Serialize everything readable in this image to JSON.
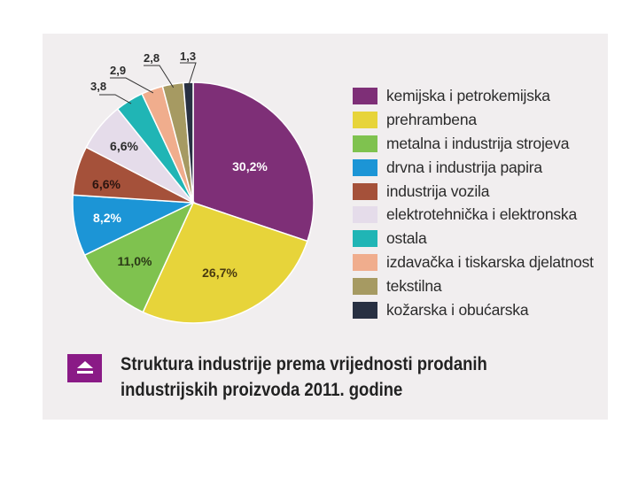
{
  "chart_data": {
    "type": "pie",
    "title": "Struktura industrije prema vrijednosti prodanih industrijskih proizvoda 2011. godine",
    "title_lines": [
      "Struktura industrije prema vrijednosti prodanih",
      "industrijskih proizvoda 2011. godine"
    ],
    "legend_position": "right",
    "slices": [
      {
        "name": "kemijska i petrokemijska",
        "value": 30.2,
        "label": "30,2%",
        "color": "#7e2f77"
      },
      {
        "name": "prehrambena",
        "value": 26.7,
        "label": "26,7%",
        "color": "#e7d43a"
      },
      {
        "name": "metalna i industrija strojeva",
        "value": 11.0,
        "label": "11,0%",
        "color": "#7fc24f"
      },
      {
        "name": "drvna i industrija papira",
        "value": 8.2,
        "label": "8,2%",
        "color": "#1c95d6"
      },
      {
        "name": "industrija vozila",
        "value": 6.6,
        "label": "6,6%",
        "color": "#a5513a"
      },
      {
        "name": "elektrotehnička i elektronska",
        "value": 6.6,
        "label": "6,6%",
        "color": "#e5dcea"
      },
      {
        "name": "ostala",
        "value": 3.8,
        "label": "3,8",
        "color": "#20b5b5"
      },
      {
        "name": "izdavačka i tiskarska djelatnost",
        "value": 2.9,
        "label": "2,9",
        "color": "#f0ad8d"
      },
      {
        "name": "tekstilna",
        "value": 2.8,
        "label": "2,8",
        "color": "#a69a62"
      },
      {
        "name": "kožarska i obućarska",
        "value": 1.3,
        "label": "1,3",
        "color": "#283042"
      }
    ]
  }
}
